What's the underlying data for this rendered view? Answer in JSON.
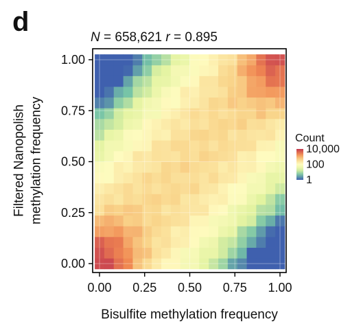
{
  "figure": {
    "panel_label": "d"
  },
  "chart_data": {
    "type": "heatmap",
    "title": {
      "n_symbol": "N",
      "n_value": " = 658,621 ",
      "r_symbol": "r",
      "r_value": " = 0.895"
    },
    "xlabel": "Bisulfite methylation frequency",
    "ylabel_lines": [
      "Filtered Nanopolish",
      "methylation frequency"
    ],
    "xlim": [
      0,
      1
    ],
    "ylim": [
      0,
      1
    ],
    "x_ticks": [
      0.0,
      0.25,
      0.5,
      0.75,
      1.0
    ],
    "x_tick_labels": [
      "0.00",
      "0.25",
      "0.50",
      "0.75",
      "1.00"
    ],
    "y_ticks": [
      0.0,
      0.25,
      0.5,
      0.75,
      1.0
    ],
    "y_tick_labels": [
      "0.00",
      "0.25",
      "0.50",
      "0.75",
      "1.00"
    ],
    "bins": 20,
    "grid": true,
    "color_scale": "log",
    "palette": [
      "#3f60ae",
      "#76c3a7",
      "#e2f3a0",
      "#fefbbf",
      "#f9d48a",
      "#f18a52",
      "#c2374f"
    ],
    "legend": {
      "title": "Count",
      "labels": [
        "10,000",
        "100",
        "1"
      ],
      "range": [
        1,
        10000
      ],
      "placement": "right"
    }
  }
}
